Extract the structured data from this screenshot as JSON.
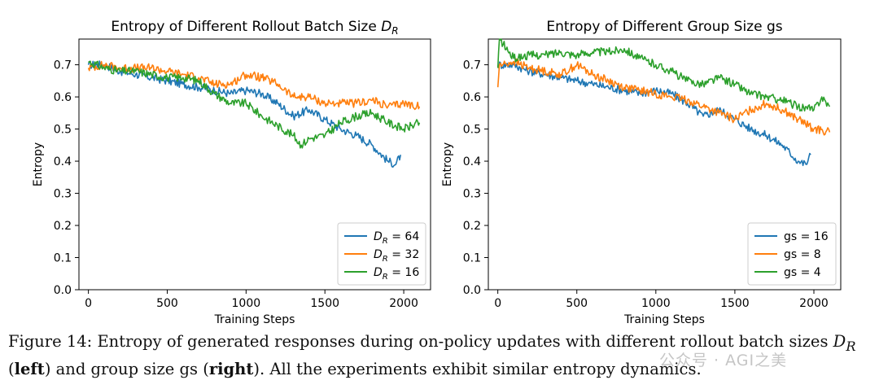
{
  "figure": {
    "caption_prefix": "Figure 14: Entropy of generated responses during on-policy updates with different rollout batch sizes",
    "caption_sym": "D",
    "caption_sub": "R",
    "caption_left": "left",
    "caption_mid": ") and group size gs (",
    "caption_right": "right",
    "caption_suffix": "). All the experiments exhibit similar entropy dynamics.",
    "watermark": "公众号 · AGI之美"
  },
  "chart_data": [
    {
      "type": "line",
      "title": "Entropy of Different Rollout Batch Size",
      "title_sym": "D",
      "title_sub": "R",
      "xlabel": "Training Steps",
      "ylabel": "Entropy",
      "xlim": [
        -60,
        2170
      ],
      "ylim": [
        0.0,
        0.78
      ],
      "xticks": [
        0,
        500,
        1000,
        1500,
        2000
      ],
      "yticks": [
        0.0,
        0.1,
        0.2,
        0.3,
        0.4,
        0.5,
        0.6,
        0.7
      ],
      "grid": false,
      "legend_position": "lower-right",
      "series": [
        {
          "name": "D_R = 64",
          "label_sym": "D",
          "label_sub": "R",
          "label_val": "= 64",
          "color": "#1f77b4",
          "x": [
            0,
            100,
            200,
            300,
            400,
            500,
            600,
            700,
            800,
            900,
            1000,
            1100,
            1200,
            1300,
            1400,
            1500,
            1600,
            1700,
            1800,
            1900,
            1950,
            1980
          ],
          "y": [
            0.7,
            0.7,
            0.68,
            0.67,
            0.66,
            0.65,
            0.64,
            0.63,
            0.62,
            0.61,
            0.62,
            0.61,
            0.58,
            0.54,
            0.56,
            0.53,
            0.5,
            0.48,
            0.45,
            0.4,
            0.39,
            0.42
          ]
        },
        {
          "name": "D_R = 32",
          "label_sym": "D",
          "label_sub": "R",
          "label_val": "= 32",
          "color": "#ff7f0e",
          "x": [
            0,
            100,
            200,
            300,
            400,
            500,
            600,
            700,
            800,
            900,
            1000,
            1100,
            1200,
            1300,
            1400,
            1500,
            1600,
            1700,
            1800,
            1900,
            2000,
            2100
          ],
          "y": [
            0.69,
            0.7,
            0.69,
            0.69,
            0.69,
            0.68,
            0.67,
            0.66,
            0.64,
            0.64,
            0.67,
            0.66,
            0.64,
            0.6,
            0.6,
            0.58,
            0.58,
            0.58,
            0.59,
            0.57,
            0.58,
            0.57
          ]
        },
        {
          "name": "D_R = 16",
          "label_sym": "D",
          "label_sub": "R",
          "label_val": "= 16",
          "color": "#2ca02c",
          "x": [
            0,
            100,
            200,
            300,
            400,
            500,
            600,
            700,
            800,
            900,
            1000,
            1100,
            1200,
            1300,
            1350,
            1400,
            1500,
            1600,
            1700,
            1800,
            1900,
            2000,
            2100
          ],
          "y": [
            0.71,
            0.69,
            0.68,
            0.68,
            0.67,
            0.66,
            0.66,
            0.65,
            0.61,
            0.58,
            0.58,
            0.54,
            0.51,
            0.48,
            0.45,
            0.47,
            0.48,
            0.52,
            0.54,
            0.55,
            0.52,
            0.5,
            0.52
          ]
        }
      ]
    },
    {
      "type": "line",
      "title": "Entropy of Different Group Size gs",
      "xlabel": "Training Steps",
      "ylabel": "Entropy",
      "xlim": [
        -60,
        2170
      ],
      "ylim": [
        0.0,
        0.78
      ],
      "xticks": [
        0,
        500,
        1000,
        1500,
        2000
      ],
      "yticks": [
        0.0,
        0.1,
        0.2,
        0.3,
        0.4,
        0.5,
        0.6,
        0.7
      ],
      "grid": false,
      "legend_position": "lower-right",
      "series": [
        {
          "name": "gs = 16",
          "label_val": "gs = 16",
          "color": "#1f77b4",
          "x": [
            0,
            100,
            200,
            300,
            400,
            500,
            600,
            700,
            800,
            900,
            1000,
            1100,
            1200,
            1300,
            1400,
            1500,
            1600,
            1700,
            1800,
            1900,
            1950,
            1980
          ],
          "y": [
            0.7,
            0.7,
            0.68,
            0.67,
            0.66,
            0.65,
            0.64,
            0.63,
            0.62,
            0.61,
            0.62,
            0.61,
            0.58,
            0.54,
            0.56,
            0.53,
            0.5,
            0.48,
            0.45,
            0.4,
            0.39,
            0.42
          ]
        },
        {
          "name": "gs = 8",
          "label_val": "gs = 8",
          "color": "#ff7f0e",
          "x": [
            0,
            10,
            30,
            100,
            200,
            300,
            400,
            500,
            600,
            700,
            800,
            900,
            1000,
            1100,
            1200,
            1300,
            1400,
            1500,
            1600,
            1700,
            1800,
            1900,
            2000,
            2100
          ],
          "y": [
            0.63,
            0.7,
            0.7,
            0.71,
            0.69,
            0.68,
            0.67,
            0.7,
            0.67,
            0.65,
            0.63,
            0.62,
            0.61,
            0.6,
            0.59,
            0.57,
            0.55,
            0.53,
            0.56,
            0.58,
            0.56,
            0.53,
            0.5,
            0.49
          ]
        },
        {
          "name": "gs = 4",
          "label_val": "gs = 4",
          "color": "#2ca02c",
          "x": [
            0,
            10,
            100,
            200,
            300,
            400,
            500,
            600,
            700,
            800,
            900,
            1000,
            1100,
            1200,
            1300,
            1400,
            1500,
            1600,
            1700,
            1800,
            1900,
            2000,
            2050,
            2100
          ],
          "y": [
            0.69,
            0.78,
            0.72,
            0.73,
            0.73,
            0.74,
            0.73,
            0.74,
            0.74,
            0.75,
            0.72,
            0.7,
            0.68,
            0.65,
            0.64,
            0.66,
            0.64,
            0.61,
            0.6,
            0.59,
            0.57,
            0.56,
            0.6,
            0.57
          ]
        }
      ]
    }
  ]
}
